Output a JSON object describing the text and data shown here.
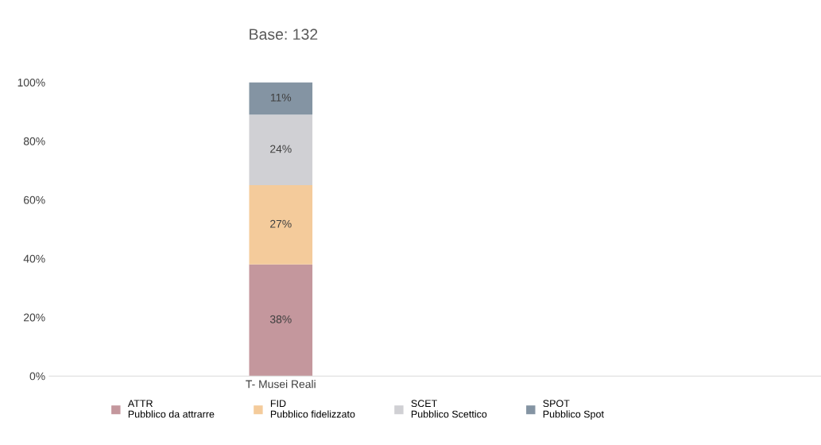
{
  "chart_data": {
    "type": "bar",
    "title": "Base: 132",
    "stacked": true,
    "categories": [
      null,
      "T- Musei Reali",
      null,
      null,
      null
    ],
    "series": [
      {
        "name": "ATTR\nPubblico da attrarre",
        "color": "#c4979d",
        "values": [
          null,
          38,
          null,
          null,
          null
        ],
        "value_labels": [
          null,
          "38%",
          null,
          null,
          null
        ]
      },
      {
        "name": "FID\nPubblico fidelizzato",
        "color": "#f4cb9b",
        "values": [
          null,
          27,
          null,
          null,
          null
        ],
        "value_labels": [
          null,
          "27%",
          null,
          null,
          null
        ]
      },
      {
        "name": "SCET\nPubblico Scettico",
        "color": "#d0d0d4",
        "values": [
          null,
          24,
          null,
          null,
          null
        ],
        "value_labels": [
          null,
          "24%",
          null,
          null,
          null
        ]
      },
      {
        "name": "SPOT\nPubblico Spot",
        "color": "#8494a3",
        "values": [
          null,
          11,
          null,
          null,
          null
        ],
        "value_labels": [
          null,
          "11%",
          null,
          null,
          null
        ]
      }
    ],
    "ylim": [
      0,
      100
    ],
    "yticks": [
      {
        "value": 0,
        "label": "0%"
      },
      {
        "value": 20,
        "label": "20%"
      },
      {
        "value": 40,
        "label": "40%"
      },
      {
        "value": 60,
        "label": "60%"
      },
      {
        "value": 80,
        "label": "80%"
      },
      {
        "value": 100,
        "label": "100%"
      }
    ],
    "grid": false,
    "legend": "bottom"
  }
}
